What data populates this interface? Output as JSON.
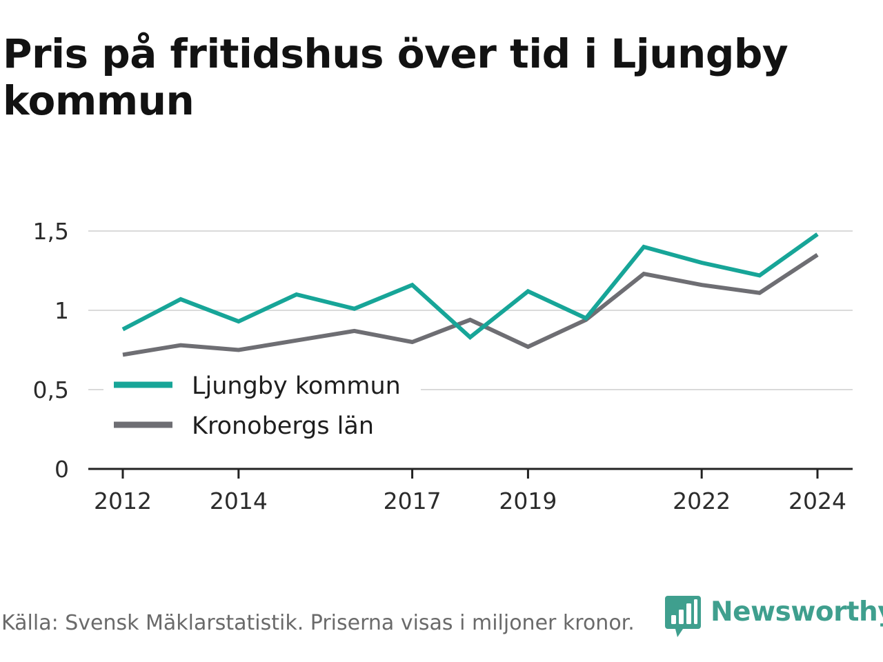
{
  "title": "Pris på fritidshus över tid i Ljungby kommun",
  "footer": "Källa: Svensk Mäklarstatistik. Priserna visas i miljoner kronor.",
  "brand": {
    "name": "Newsworthy",
    "color": "#3f9f8e",
    "icon": "bar-chart-speech-bubble-icon"
  },
  "chart_data": {
    "type": "line",
    "x": [
      2012,
      2013,
      2014,
      2015,
      2016,
      2017,
      2018,
      2019,
      2020,
      2021,
      2022,
      2023,
      2024
    ],
    "x_tick_values": [
      2012,
      2014,
      2017,
      2019,
      2022,
      2024
    ],
    "x_tick_labels": [
      "2012",
      "2014",
      "2017",
      "2019",
      "2022",
      "2024"
    ],
    "y_ticks": [
      0,
      0.5,
      1,
      1.5
    ],
    "y_tick_labels": [
      "0",
      "0,5",
      "1",
      "1,5"
    ],
    "ylim": [
      0,
      1.5
    ],
    "grid": true,
    "legend_position": "bottom-left",
    "series": [
      {
        "name": "Ljungby kommun",
        "color": "#17a598",
        "values": [
          0.88,
          1.07,
          0.93,
          1.1,
          1.01,
          1.16,
          0.83,
          1.12,
          0.95,
          1.4,
          1.3,
          1.22,
          1.48
        ]
      },
      {
        "name": "Kronobergs län",
        "color": "#6e6e73",
        "values": [
          0.72,
          0.78,
          0.75,
          0.81,
          0.87,
          0.8,
          0.94,
          0.77,
          0.94,
          1.23,
          1.16,
          1.11,
          1.35
        ]
      }
    ]
  }
}
